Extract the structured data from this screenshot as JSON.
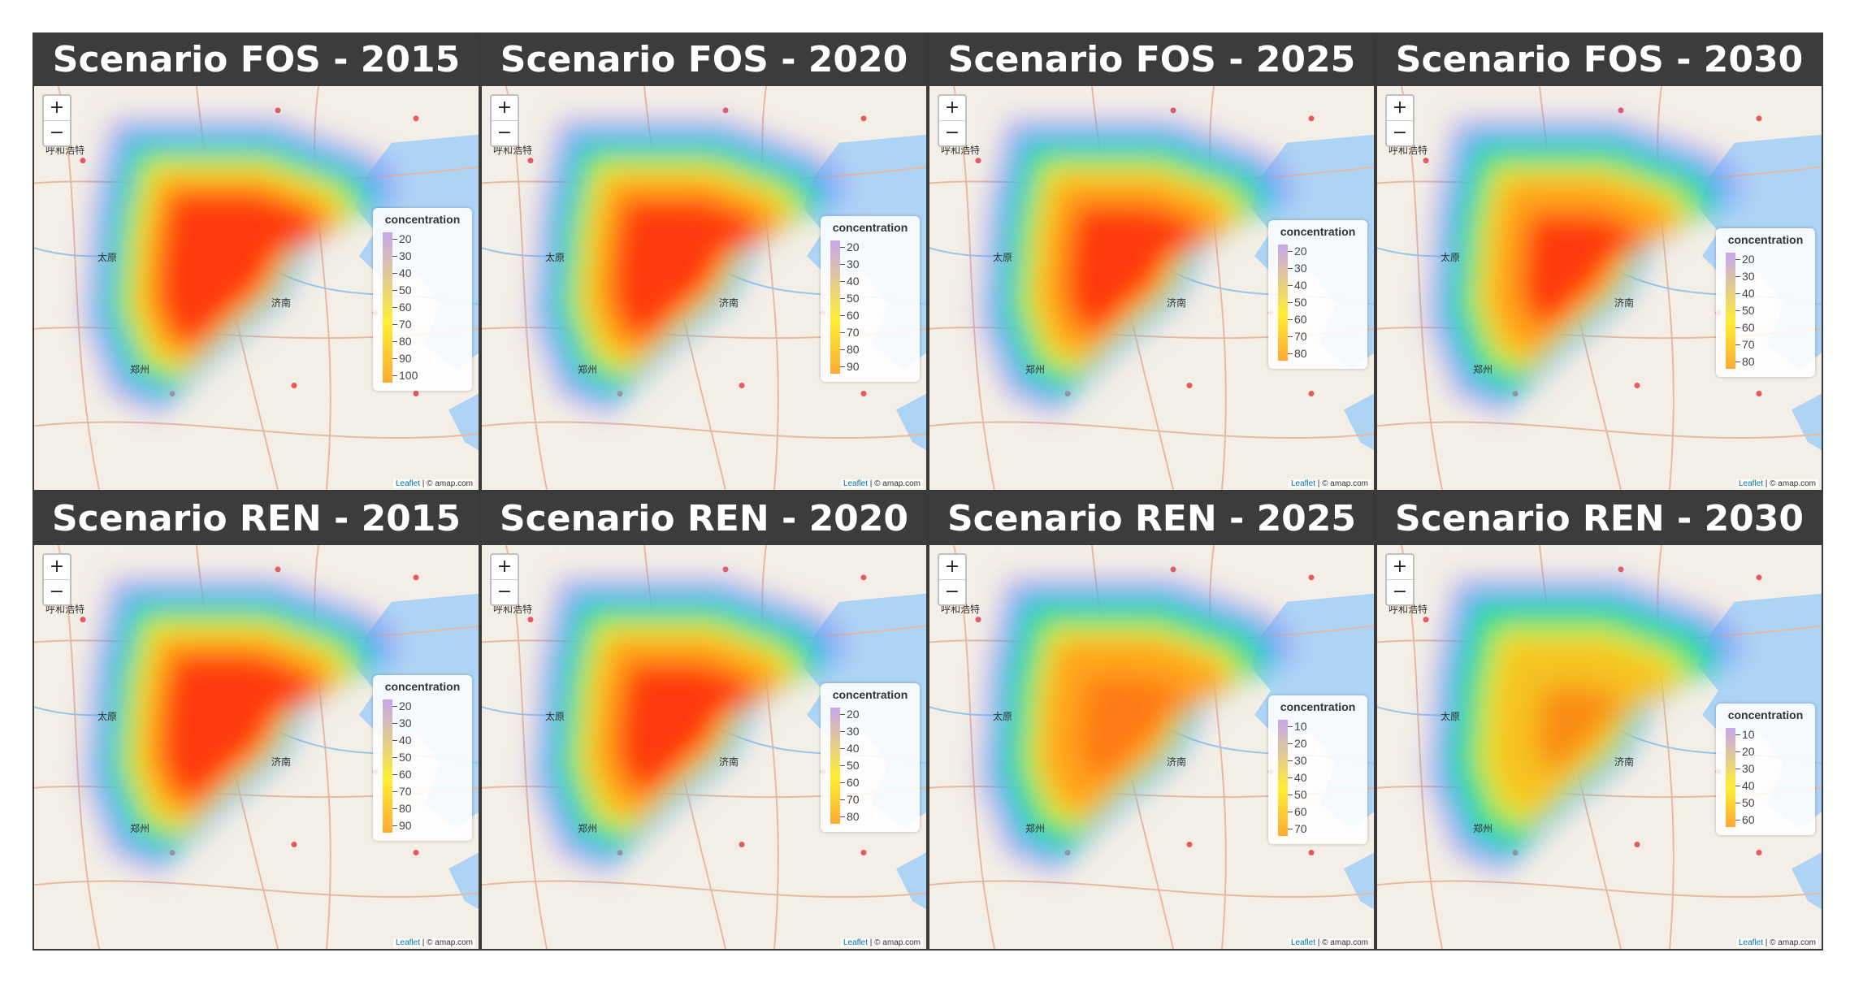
{
  "colors": {
    "title_bar": "#3c3c3c",
    "sea": "#aed4f5",
    "land": "#f4efe6",
    "heat_ramp": [
      "#8a6cf0",
      "#2fb8ff",
      "#22e07a",
      "#e8f026",
      "#ffa41c",
      "#ff3a10"
    ]
  },
  "common": {
    "zoom_in": "+",
    "zoom_out": "−",
    "legend_title": "concentration",
    "attribution_link": "Leaflet",
    "attribution_text": " | © amap.com"
  },
  "map_labels": [
    {
      "id": "hohhot",
      "text": "呼和浩特"
    },
    {
      "id": "taiyuan",
      "text": "太原"
    },
    {
      "id": "jinan",
      "text": "济南"
    },
    {
      "id": "zhengzhou",
      "text": "郑州"
    }
  ],
  "panels": [
    {
      "title": "Scenario FOS - 2015",
      "legend": [
        "20",
        "30",
        "40",
        "50",
        "60",
        "70",
        "80",
        "90",
        "100"
      ],
      "intensity": 1.0
    },
    {
      "title": "Scenario FOS - 2020",
      "legend": [
        "20",
        "30",
        "40",
        "50",
        "60",
        "70",
        "80",
        "90"
      ],
      "intensity": 0.92
    },
    {
      "title": "Scenario FOS - 2025",
      "legend": [
        "20",
        "30",
        "40",
        "50",
        "60",
        "70",
        "80"
      ],
      "intensity": 0.84
    },
    {
      "title": "Scenario FOS - 2030",
      "legend": [
        "20",
        "30",
        "40",
        "50",
        "60",
        "70",
        "80"
      ],
      "intensity": 0.74
    },
    {
      "title": "Scenario REN - 2015",
      "legend": [
        "20",
        "30",
        "40",
        "50",
        "60",
        "70",
        "80",
        "90"
      ],
      "intensity": 0.96
    },
    {
      "title": "Scenario REN - 2020",
      "legend": [
        "20",
        "30",
        "40",
        "50",
        "60",
        "70",
        "80"
      ],
      "intensity": 0.85
    },
    {
      "title": "Scenario REN - 2025",
      "legend": [
        "10",
        "20",
        "30",
        "40",
        "50",
        "60",
        "70"
      ],
      "intensity": 0.66
    },
    {
      "title": "Scenario REN - 2030",
      "legend": [
        "10",
        "20",
        "30",
        "40",
        "50",
        "60"
      ],
      "intensity": 0.55
    }
  ]
}
